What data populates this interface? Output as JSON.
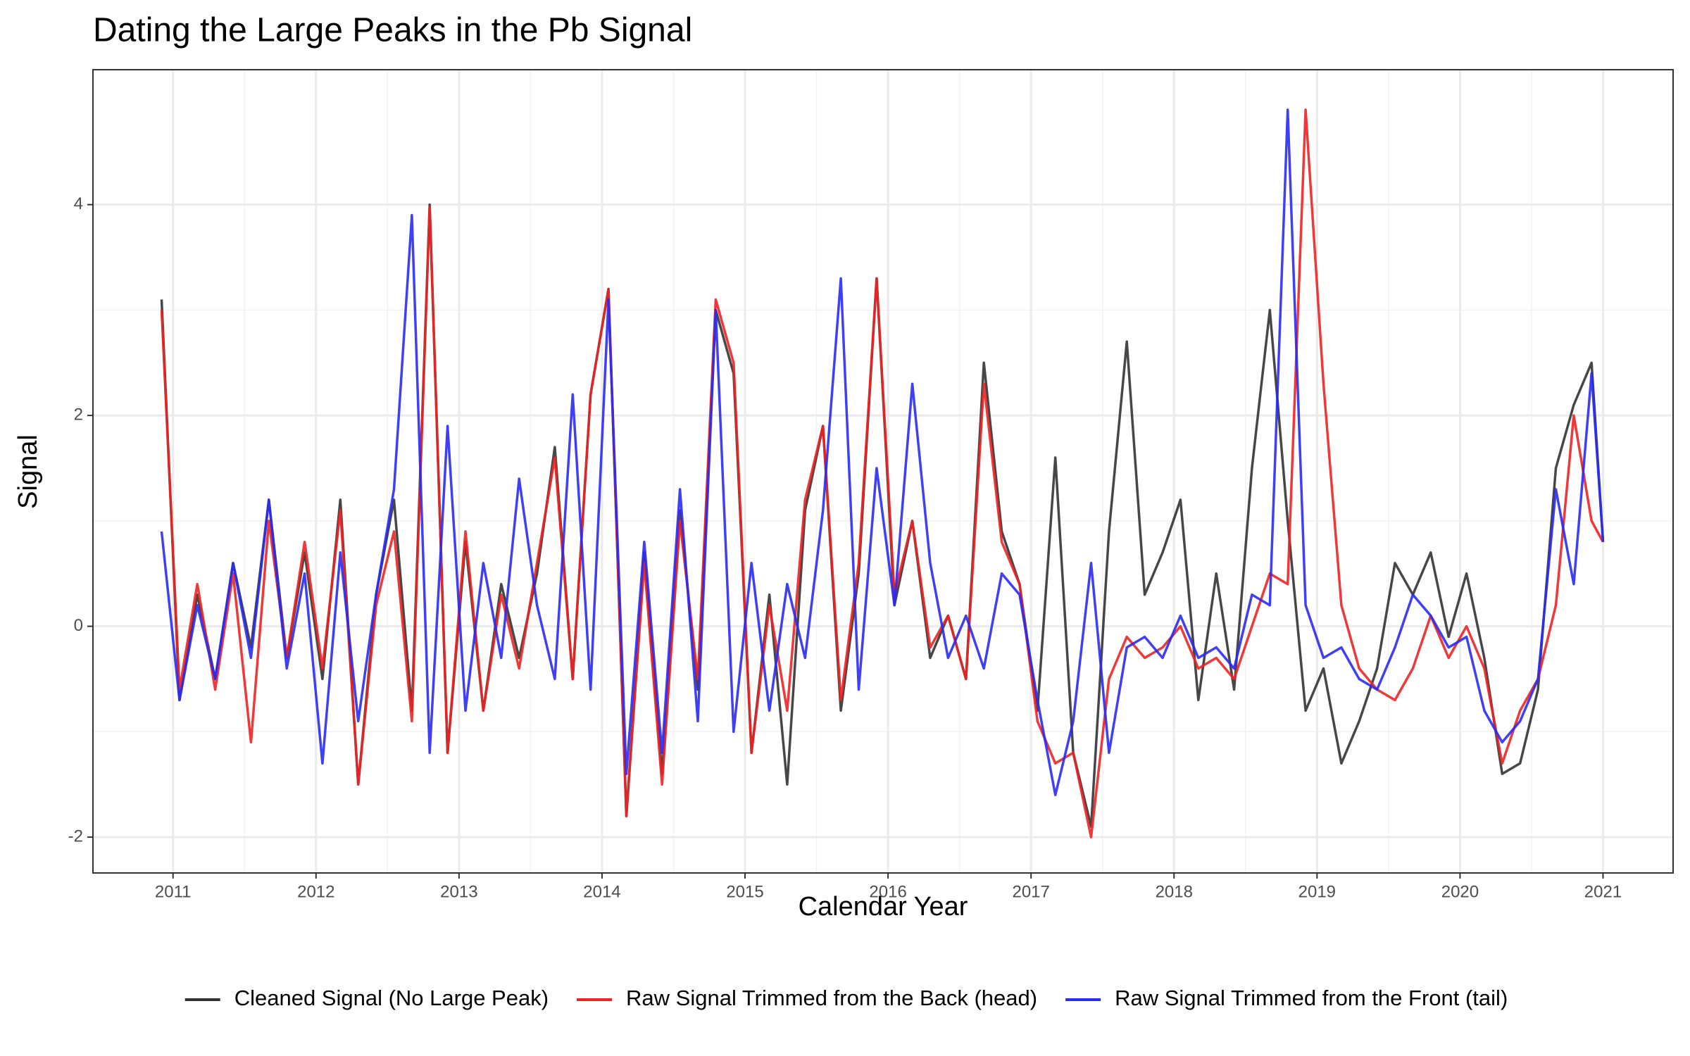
{
  "chart_data": {
    "type": "line",
    "title": "Dating the Large Peaks in the Pb Signal",
    "x_label": "Calendar Year",
    "y_label": "Signal",
    "x": [
      2010.92,
      2011.045,
      2011.17,
      2011.295,
      2011.42,
      2011.545,
      2011.67,
      2011.795,
      2011.92,
      2012.045,
      2012.17,
      2012.295,
      2012.42,
      2012.545,
      2012.67,
      2012.795,
      2012.92,
      2013.045,
      2013.17,
      2013.295,
      2013.42,
      2013.545,
      2013.67,
      2013.795,
      2013.92,
      2014.045,
      2014.17,
      2014.295,
      2014.42,
      2014.545,
      2014.67,
      2014.795,
      2014.92,
      2015.045,
      2015.17,
      2015.295,
      2015.42,
      2015.545,
      2015.67,
      2015.795,
      2015.92,
      2016.045,
      2016.17,
      2016.295,
      2016.42,
      2016.545,
      2016.67,
      2016.795,
      2016.92,
      2017.045,
      2017.17,
      2017.295,
      2017.42,
      2017.545,
      2017.67,
      2017.795,
      2017.92,
      2018.045,
      2018.17,
      2018.295,
      2018.42,
      2018.545,
      2018.67,
      2018.795,
      2018.92,
      2019.045,
      2019.17,
      2019.295,
      2019.42,
      2019.545,
      2019.67,
      2019.795,
      2019.92,
      2020.045,
      2020.17,
      2020.295,
      2020.42,
      2020.545,
      2020.67,
      2020.795,
      2020.92,
      2021.0
    ],
    "series": [
      {
        "name": "Cleaned Signal (No Large Peak)",
        "color": "#333333",
        "values": [
          3.1,
          -0.7,
          0.3,
          -0.5,
          0.6,
          -0.2,
          1.2,
          -0.3,
          0.7,
          -0.5,
          1.2,
          -1.5,
          0.3,
          1.2,
          -0.8,
          4.0,
          -1.2,
          0.8,
          -0.8,
          0.4,
          -0.3,
          0.5,
          1.7,
          -0.5,
          2.2,
          3.2,
          -1.8,
          0.7,
          -1.4,
          1.1,
          -0.6,
          3.0,
          2.4,
          -1.2,
          0.3,
          -1.5,
          1.1,
          1.9,
          -0.8,
          0.5,
          3.3,
          0.2,
          1.0,
          -0.3,
          0.1,
          -0.5,
          2.5,
          0.9,
          0.4,
          -0.8,
          1.6,
          -1.2,
          -1.9,
          0.9,
          2.7,
          0.3,
          0.7,
          1.2,
          -0.7,
          0.5,
          -0.6,
          1.5,
          3.0,
          1.0,
          -0.8,
          -0.4,
          -1.3,
          -0.9,
          -0.4,
          0.6,
          0.3,
          0.7,
          -0.1,
          0.5,
          -0.3,
          -1.4,
          -1.3,
          -0.6,
          1.5,
          2.1,
          2.5,
          0.8
        ]
      },
      {
        "name": "Raw Signal Trimmed from the Back (head)",
        "color": "#ee2222",
        "values": [
          3.0,
          -0.6,
          0.4,
          -0.6,
          0.5,
          -1.1,
          1.0,
          -0.3,
          0.8,
          -0.4,
          1.1,
          -1.5,
          0.2,
          0.9,
          -0.9,
          3.98,
          -1.2,
          0.9,
          -0.8,
          0.3,
          -0.4,
          0.6,
          1.6,
          -0.5,
          2.2,
          3.2,
          -1.8,
          0.6,
          -1.5,
          1.0,
          -0.5,
          3.1,
          2.5,
          -1.2,
          0.2,
          -0.8,
          1.2,
          1.9,
          -0.7,
          0.6,
          3.3,
          0.3,
          1.0,
          -0.2,
          0.1,
          -0.5,
          2.3,
          0.8,
          0.4,
          -0.9,
          -1.3,
          -1.2,
          -2.0,
          -0.5,
          -0.1,
          -0.3,
          -0.2,
          0.0,
          -0.4,
          -0.3,
          -0.5,
          0.0,
          0.5,
          0.4,
          4.9,
          2.3,
          0.2,
          -0.4,
          -0.6,
          -0.7,
          -0.4,
          0.1,
          -0.3,
          0.0,
          -0.4,
          -1.3,
          -0.8,
          -0.5,
          0.2,
          2.0,
          1.0,
          0.8
        ]
      },
      {
        "name": "Raw Signal Trimmed from the Front (tail)",
        "color": "#2a2af5",
        "values": [
          0.9,
          -0.7,
          0.2,
          -0.5,
          0.6,
          -0.3,
          1.2,
          -0.4,
          0.5,
          -1.3,
          0.7,
          -0.9,
          0.3,
          1.3,
          3.9,
          -1.2,
          1.9,
          -0.8,
          0.6,
          -0.3,
          1.4,
          0.2,
          -0.5,
          2.2,
          -0.6,
          3.1,
          -1.4,
          0.8,
          -1.2,
          1.3,
          -0.9,
          3.0,
          -1.0,
          0.6,
          -0.8,
          0.4,
          -0.3,
          1.1,
          3.3,
          -0.6,
          1.5,
          0.2,
          2.3,
          0.6,
          -0.3,
          0.1,
          -0.4,
          0.5,
          0.3,
          -0.7,
          -1.6,
          -0.9,
          0.6,
          -1.2,
          -0.2,
          -0.1,
          -0.3,
          0.1,
          -0.3,
          -0.2,
          -0.4,
          0.3,
          0.2,
          4.9,
          0.2,
          -0.3,
          -0.2,
          -0.5,
          -0.6,
          -0.2,
          0.3,
          0.1,
          -0.2,
          -0.1,
          -0.8,
          -1.1,
          -0.9,
          -0.5,
          1.3,
          0.4,
          2.4,
          0.8
        ]
      }
    ],
    "xlim": [
      2010.44,
      2021.49
    ],
    "xticks": [
      2011,
      2012,
      2013,
      2014,
      2015,
      2016,
      2017,
      2018,
      2019,
      2020,
      2021
    ],
    "ylim": [
      -2.34,
      5.28
    ],
    "yticks": [
      -2,
      0,
      2,
      4
    ],
    "grid": true,
    "legend": "bottom"
  }
}
